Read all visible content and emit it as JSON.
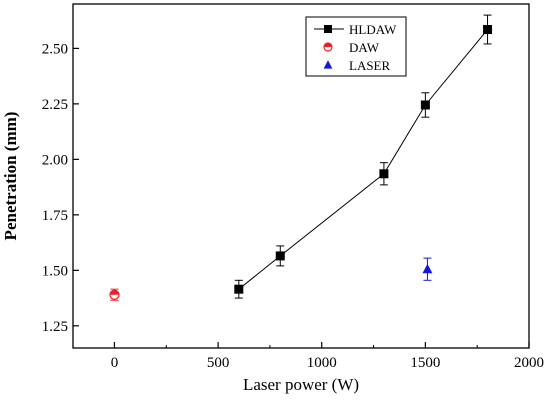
{
  "chart_data": {
    "type": "scatter",
    "title": "",
    "xlabel": "Laser power (W)",
    "ylabel": "Penetration (mm)",
    "xlim": [
      -200,
      2000
    ],
    "ylim": [
      1.15,
      2.7
    ],
    "x_ticks": [
      0,
      500,
      1000,
      1500,
      2000
    ],
    "x_tick_labels": [
      "0",
      "500",
      "1000",
      "1500",
      "2000"
    ],
    "y_ticks": [
      1.25,
      1.5,
      1.75,
      2.0,
      2.25,
      2.5
    ],
    "y_tick_labels": [
      "1.25",
      "1.50",
      "1.75",
      "2.00",
      "2.25",
      "2.50"
    ],
    "grid": false,
    "legend_position": "top-right",
    "series": [
      {
        "name": "HLDAW",
        "marker": "square",
        "line": true,
        "color": "#000000",
        "points": [
          {
            "x": 600,
            "y": 1.415,
            "err": 0.04
          },
          {
            "x": 800,
            "y": 1.565,
            "err": 0.045
          },
          {
            "x": 1300,
            "y": 1.935,
            "err": 0.05
          },
          {
            "x": 1500,
            "y": 2.245,
            "err": 0.055
          },
          {
            "x": 1800,
            "y": 2.585,
            "err": 0.065
          }
        ]
      },
      {
        "name": "DAW",
        "marker": "circle-half",
        "line": false,
        "color": "#e8202a",
        "points": [
          {
            "x": 0,
            "y": 1.39,
            "err": 0.025
          }
        ]
      },
      {
        "name": "LASER",
        "marker": "triangle",
        "line": false,
        "color": "#1515e0",
        "points": [
          {
            "x": 1510,
            "y": 1.505,
            "err": 0.05
          }
        ]
      }
    ]
  }
}
